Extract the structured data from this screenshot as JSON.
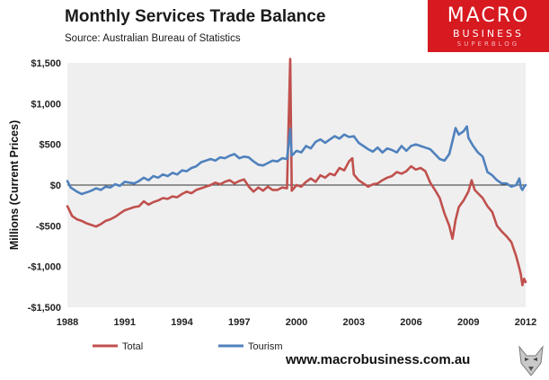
{
  "title": "Monthly  Services Trade  Balance",
  "source": "Source:  Australian Bureau of Statistics",
  "logo": {
    "line1": "MACRO",
    "line2": "BUSINESS",
    "line3": "SUPERBLOG"
  },
  "website": "www.macrobusiness.com.au",
  "colors": {
    "total": "#c0504d",
    "tourism": "#4f81bd",
    "plot_bg": "#efefef",
    "brand": "#d71920"
  },
  "chart_data": {
    "type": "line",
    "title": "Monthly  Services Trade  Balance",
    "ylabel": "Millions (Current Prices)",
    "xlabel": "",
    "xlim": [
      1988,
      2012
    ],
    "ylim": [
      -1500,
      1500
    ],
    "xticks": [
      1988,
      1991,
      1994,
      1997,
      2000,
      2003,
      2006,
      2009,
      2012
    ],
    "yticks": [
      -1500,
      -1000,
      -500,
      0,
      500,
      1000,
      1500
    ],
    "ytick_labels": [
      "-$1,500",
      "-$1,000",
      "-$500",
      "$0",
      "$500",
      "$1,000",
      "$1,500"
    ],
    "legend_position": "bottom",
    "series": [
      {
        "name": "Total",
        "points": [
          [
            1988.0,
            -260
          ],
          [
            1988.25,
            -380
          ],
          [
            1988.5,
            -420
          ],
          [
            1988.75,
            -440
          ],
          [
            1989.0,
            -470
          ],
          [
            1989.25,
            -490
          ],
          [
            1989.5,
            -510
          ],
          [
            1989.75,
            -480
          ],
          [
            1990.0,
            -440
          ],
          [
            1990.25,
            -420
          ],
          [
            1990.5,
            -390
          ],
          [
            1990.75,
            -350
          ],
          [
            1991.0,
            -310
          ],
          [
            1991.25,
            -290
          ],
          [
            1991.5,
            -270
          ],
          [
            1991.75,
            -260
          ],
          [
            1992.0,
            -200
          ],
          [
            1992.25,
            -240
          ],
          [
            1992.5,
            -210
          ],
          [
            1992.75,
            -190
          ],
          [
            1993.0,
            -160
          ],
          [
            1993.25,
            -170
          ],
          [
            1993.5,
            -140
          ],
          [
            1993.75,
            -150
          ],
          [
            1994.0,
            -110
          ],
          [
            1994.25,
            -80
          ],
          [
            1994.5,
            -100
          ],
          [
            1994.75,
            -60
          ],
          [
            1995.0,
            -40
          ],
          [
            1995.25,
            -20
          ],
          [
            1995.5,
            0
          ],
          [
            1995.75,
            30
          ],
          [
            1996.0,
            10
          ],
          [
            1996.25,
            40
          ],
          [
            1996.5,
            60
          ],
          [
            1996.75,
            20
          ],
          [
            1997.0,
            50
          ],
          [
            1997.25,
            70
          ],
          [
            1997.5,
            -20
          ],
          [
            1997.75,
            -80
          ],
          [
            1998.0,
            -30
          ],
          [
            1998.25,
            -70
          ],
          [
            1998.5,
            -20
          ],
          [
            1998.75,
            -60
          ],
          [
            1999.0,
            -60
          ],
          [
            1999.25,
            -30
          ],
          [
            1999.5,
            -40
          ],
          [
            1999.67,
            1550
          ],
          [
            1999.75,
            -70
          ],
          [
            2000.0,
            0
          ],
          [
            2000.25,
            -20
          ],
          [
            2000.5,
            40
          ],
          [
            2000.75,
            80
          ],
          [
            2001.0,
            40
          ],
          [
            2001.25,
            120
          ],
          [
            2001.5,
            90
          ],
          [
            2001.75,
            140
          ],
          [
            2002.0,
            120
          ],
          [
            2002.25,
            210
          ],
          [
            2002.5,
            180
          ],
          [
            2002.75,
            290
          ],
          [
            2002.92,
            330
          ],
          [
            2003.0,
            130
          ],
          [
            2003.25,
            60
          ],
          [
            2003.5,
            20
          ],
          [
            2003.75,
            -20
          ],
          [
            2004.0,
            10
          ],
          [
            2004.25,
            20
          ],
          [
            2004.5,
            60
          ],
          [
            2004.75,
            90
          ],
          [
            2005.0,
            110
          ],
          [
            2005.25,
            160
          ],
          [
            2005.5,
            140
          ],
          [
            2005.75,
            170
          ],
          [
            2006.0,
            230
          ],
          [
            2006.25,
            190
          ],
          [
            2006.5,
            210
          ],
          [
            2006.75,
            170
          ],
          [
            2007.0,
            30
          ],
          [
            2007.25,
            -60
          ],
          [
            2007.5,
            -160
          ],
          [
            2007.75,
            -350
          ],
          [
            2008.0,
            -500
          ],
          [
            2008.17,
            -660
          ],
          [
            2008.33,
            -430
          ],
          [
            2008.5,
            -270
          ],
          [
            2008.75,
            -190
          ],
          [
            2009.0,
            -80
          ],
          [
            2009.17,
            60
          ],
          [
            2009.33,
            -60
          ],
          [
            2009.5,
            -100
          ],
          [
            2009.75,
            -160
          ],
          [
            2010.0,
            -260
          ],
          [
            2010.25,
            -330
          ],
          [
            2010.5,
            -500
          ],
          [
            2010.75,
            -570
          ],
          [
            2011.0,
            -630
          ],
          [
            2011.25,
            -700
          ],
          [
            2011.5,
            -870
          ],
          [
            2011.67,
            -1020
          ],
          [
            2011.75,
            -1100
          ],
          [
            2011.83,
            -1230
          ],
          [
            2011.92,
            -1150
          ],
          [
            2012.0,
            -1190
          ]
        ]
      },
      {
        "name": "Tourism",
        "points": [
          [
            1988.0,
            50
          ],
          [
            1988.17,
            -30
          ],
          [
            1988.5,
            -80
          ],
          [
            1988.75,
            -110
          ],
          [
            1989.0,
            -90
          ],
          [
            1989.25,
            -70
          ],
          [
            1989.5,
            -40
          ],
          [
            1989.75,
            -60
          ],
          [
            1990.0,
            -20
          ],
          [
            1990.25,
            -30
          ],
          [
            1990.5,
            10
          ],
          [
            1990.75,
            -10
          ],
          [
            1991.0,
            40
          ],
          [
            1991.25,
            30
          ],
          [
            1991.5,
            20
          ],
          [
            1991.75,
            50
          ],
          [
            1992.0,
            90
          ],
          [
            1992.25,
            60
          ],
          [
            1992.5,
            110
          ],
          [
            1992.75,
            90
          ],
          [
            1993.0,
            130
          ],
          [
            1993.25,
            110
          ],
          [
            1993.5,
            150
          ],
          [
            1993.75,
            130
          ],
          [
            1994.0,
            180
          ],
          [
            1994.25,
            170
          ],
          [
            1994.5,
            210
          ],
          [
            1994.75,
            230
          ],
          [
            1995.0,
            280
          ],
          [
            1995.25,
            300
          ],
          [
            1995.5,
            320
          ],
          [
            1995.75,
            300
          ],
          [
            1996.0,
            340
          ],
          [
            1996.25,
            330
          ],
          [
            1996.5,
            360
          ],
          [
            1996.75,
            380
          ],
          [
            1997.0,
            330
          ],
          [
            1997.25,
            350
          ],
          [
            1997.5,
            340
          ],
          [
            1997.75,
            290
          ],
          [
            1998.0,
            250
          ],
          [
            1998.25,
            240
          ],
          [
            1998.5,
            270
          ],
          [
            1998.75,
            300
          ],
          [
            1999.0,
            290
          ],
          [
            1999.25,
            330
          ],
          [
            1999.5,
            320
          ],
          [
            1999.67,
            690
          ],
          [
            1999.75,
            360
          ],
          [
            2000.0,
            420
          ],
          [
            2000.25,
            400
          ],
          [
            2000.5,
            480
          ],
          [
            2000.75,
            450
          ],
          [
            2001.0,
            530
          ],
          [
            2001.25,
            560
          ],
          [
            2001.5,
            520
          ],
          [
            2001.75,
            560
          ],
          [
            2002.0,
            600
          ],
          [
            2002.25,
            570
          ],
          [
            2002.5,
            620
          ],
          [
            2002.75,
            590
          ],
          [
            2003.0,
            600
          ],
          [
            2003.25,
            520
          ],
          [
            2003.5,
            480
          ],
          [
            2003.75,
            440
          ],
          [
            2004.0,
            410
          ],
          [
            2004.25,
            460
          ],
          [
            2004.5,
            400
          ],
          [
            2004.75,
            450
          ],
          [
            2005.0,
            430
          ],
          [
            2005.25,
            400
          ],
          [
            2005.5,
            480
          ],
          [
            2005.75,
            420
          ],
          [
            2006.0,
            480
          ],
          [
            2006.25,
            500
          ],
          [
            2006.5,
            480
          ],
          [
            2006.75,
            460
          ],
          [
            2007.0,
            440
          ],
          [
            2007.25,
            380
          ],
          [
            2007.5,
            320
          ],
          [
            2007.75,
            300
          ],
          [
            2008.0,
            380
          ],
          [
            2008.17,
            540
          ],
          [
            2008.33,
            700
          ],
          [
            2008.5,
            620
          ],
          [
            2008.75,
            660
          ],
          [
            2008.92,
            720
          ],
          [
            2009.0,
            580
          ],
          [
            2009.25,
            480
          ],
          [
            2009.5,
            400
          ],
          [
            2009.75,
            350
          ],
          [
            2010.0,
            160
          ],
          [
            2010.25,
            120
          ],
          [
            2010.5,
            60
          ],
          [
            2010.75,
            20
          ],
          [
            2011.0,
            20
          ],
          [
            2011.25,
            -20
          ],
          [
            2011.5,
            0
          ],
          [
            2011.67,
            80
          ],
          [
            2011.75,
            -30
          ],
          [
            2011.83,
            -60
          ],
          [
            2011.92,
            -20
          ],
          [
            2012.0,
            0
          ]
        ]
      }
    ]
  }
}
